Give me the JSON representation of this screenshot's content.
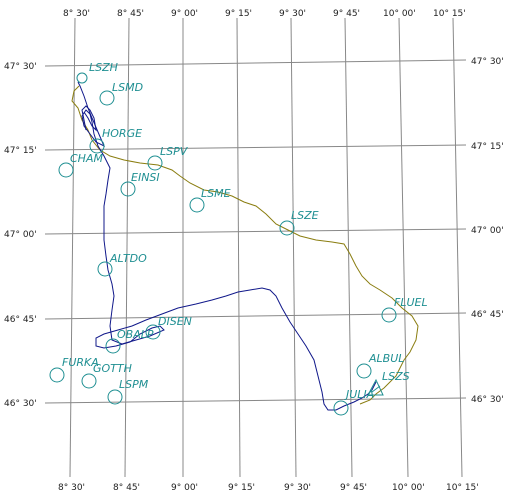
{
  "map": {
    "longitudes": [
      "8° 30'",
      "8° 45'",
      "9° 00'",
      "9° 15'",
      "9° 30'",
      "9° 45'",
      "10° 00'",
      "10° 15'"
    ],
    "latitudes": [
      "47° 30'",
      "47° 15'",
      "47° 00'",
      "46° 45'",
      "46° 30'"
    ],
    "waypoints": [
      {
        "label": "LSZH"
      },
      {
        "label": "LSMD"
      },
      {
        "label": "HORGE"
      },
      {
        "label": "CHAM"
      },
      {
        "label": "LSPV"
      },
      {
        "label": "EINSI"
      },
      {
        "label": "LSME"
      },
      {
        "label": "LSZE"
      },
      {
        "label": "ALTDO"
      },
      {
        "label": "FLUEL"
      },
      {
        "label": "DISEN"
      },
      {
        "label": "OBALP"
      },
      {
        "label": "ALBUL"
      },
      {
        "label": "FURKA"
      },
      {
        "label": "GOTTH"
      },
      {
        "label": "LSZS"
      },
      {
        "label": "LSPM"
      },
      {
        "label": "JULIA"
      }
    ],
    "colors": {
      "grid": "#888888",
      "waypoint": "#1f8f92",
      "track_outbound": "#8a7d10",
      "track_return": "#10188a"
    }
  }
}
